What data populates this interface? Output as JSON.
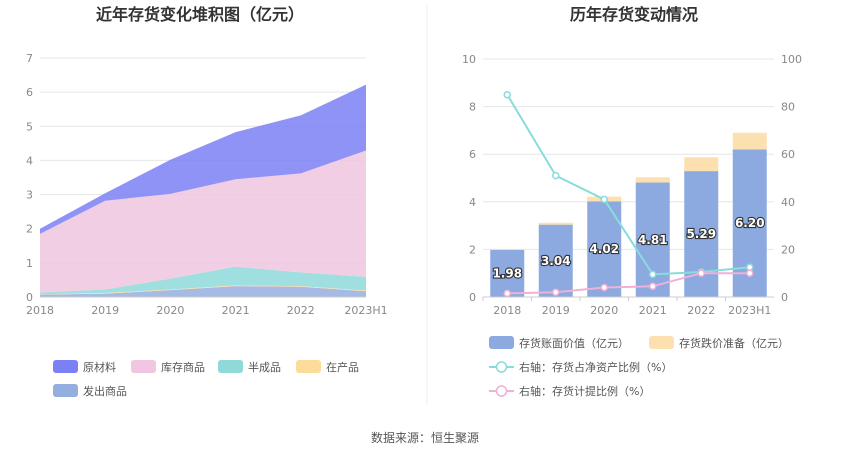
{
  "footer": {
    "source": "数据来源：恒生聚源"
  },
  "colors": {
    "raw_material": "#7b80f5",
    "inventory_goods": "#f0c6e0",
    "semi_finished": "#8fd9d9",
    "in_process": "#fddb9a",
    "shipped_goods": "#95aee0",
    "bar_book_value": "#8caadf",
    "bar_provision": "#fde0b0",
    "line_ratio": "#88dcdc",
    "line_provision": "#f0b0d8"
  },
  "chart_data": [
    {
      "type": "area",
      "title": "近年存货变化堆积图（亿元）",
      "categories": [
        "2018",
        "2019",
        "2020",
        "2021",
        "2022",
        "2023H1"
      ],
      "ylim": [
        0,
        7
      ],
      "yticks": [
        "0",
        "1",
        "2",
        "3",
        "4",
        "5",
        "6",
        "7"
      ],
      "stack_order": [
        "发出商品",
        "在产品",
        "半成品",
        "库存商品",
        "原材料"
      ],
      "series": [
        {
          "name": "原材料",
          "key": "raw_material",
          "values": [
            0.15,
            0.22,
            1.0,
            1.38,
            1.7,
            1.93
          ]
        },
        {
          "name": "库存商品",
          "key": "inventory_goods",
          "values": [
            1.72,
            2.6,
            2.48,
            2.56,
            2.9,
            3.7
          ]
        },
        {
          "name": "半成品",
          "key": "semi_finished",
          "values": [
            0.05,
            0.1,
            0.32,
            0.55,
            0.4,
            0.4
          ]
        },
        {
          "name": "在产品",
          "key": "in_process",
          "values": [
            0.01,
            0.02,
            0.02,
            0.02,
            0.02,
            0.02
          ]
        },
        {
          "name": "发出商品",
          "key": "shipped_goods",
          "values": [
            0.07,
            0.1,
            0.2,
            0.32,
            0.3,
            0.17
          ]
        }
      ],
      "legend": [
        "原材料",
        "库存商品",
        "半成品",
        "在产品",
        "发出商品"
      ]
    },
    {
      "type": "bar",
      "title": "历年存货变动情况",
      "categories": [
        "2018",
        "2019",
        "2020",
        "2021",
        "2022",
        "2023H1"
      ],
      "ylim_left": [
        0,
        10
      ],
      "yticks_left": [
        "0",
        "2",
        "4",
        "6",
        "8",
        "10"
      ],
      "ylim_right": [
        0,
        100
      ],
      "yticks_right": [
        "0",
        "20",
        "40",
        "60",
        "80",
        "100"
      ],
      "series": [
        {
          "name": "存货账面价值（亿元）",
          "kind": "bar",
          "values": [
            1.98,
            3.04,
            4.02,
            4.81,
            5.29,
            6.2
          ],
          "labels": [
            "1.98",
            "3.04",
            "4.02",
            "4.81",
            "5.29",
            "6.20"
          ]
        },
        {
          "name": "存货跌价准备（亿元）",
          "kind": "bar-stack",
          "values": [
            0.04,
            0.08,
            0.2,
            0.22,
            0.58,
            0.7
          ]
        },
        {
          "name": "右轴：存货占净资产比例（%）",
          "kind": "line",
          "values": [
            85,
            51,
            41,
            9.5,
            10.5,
            12.5
          ]
        },
        {
          "name": "右轴：存货计提比例（%）",
          "kind": "line",
          "values": [
            1.5,
            2,
            4,
            4.5,
            10,
            10
          ]
        }
      ]
    }
  ]
}
